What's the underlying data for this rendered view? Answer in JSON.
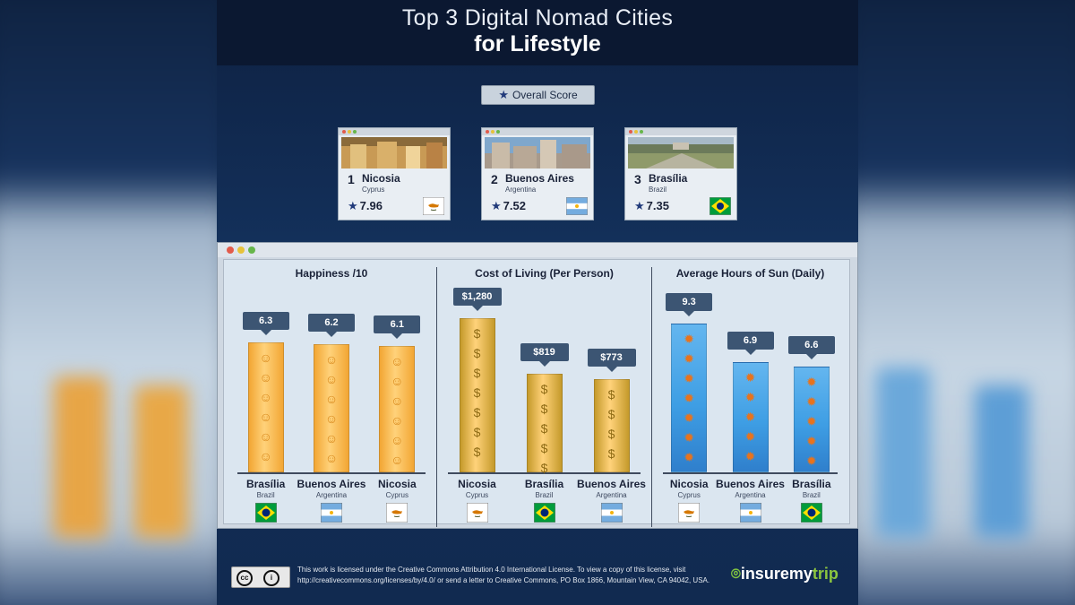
{
  "header": {
    "title_line1": "Top 3 Digital Nomad Cities",
    "title_line2": "for Lifestyle"
  },
  "overall_label": "Overall Score",
  "cards": [
    {
      "rank": "1",
      "city": "Nicosia",
      "country": "Cyprus",
      "score": "7.96",
      "flag": "cyprus"
    },
    {
      "rank": "2",
      "city": "Buenos Aires",
      "country": "Argentina",
      "score": "7.52",
      "flag": "argentina"
    },
    {
      "rank": "3",
      "city": "Brasília",
      "country": "Brazil",
      "score": "7.35",
      "flag": "brazil"
    }
  ],
  "colors": {
    "happiness": "#f2a634",
    "cost": "#c59a2b",
    "sun": "#3e9ee4",
    "callout": "#3c5573",
    "star": "#213a7a"
  },
  "icons": {
    "happiness": "smiley-icon",
    "cost": "coin-icon",
    "sun": "sun-icon"
  },
  "chart_data": [
    {
      "type": "bar",
      "title": "Happiness /10",
      "categories": [
        "Brasília",
        "Buenos Aires",
        "Nicosia"
      ],
      "countries": [
        "Brazil",
        "Argentina",
        "Cyprus"
      ],
      "flags": [
        "brazil",
        "argentina",
        "cyprus"
      ],
      "values": [
        6.3,
        6.2,
        6.1
      ],
      "labels": [
        "6.3",
        "6.2",
        "6.1"
      ]
    },
    {
      "type": "bar",
      "title": "Cost of Living (Per Person)",
      "categories": [
        "Nicosia",
        "Brasília",
        "Buenos Aires"
      ],
      "countries": [
        "Cyprus",
        "Brazil",
        "Argentina"
      ],
      "flags": [
        "cyprus",
        "brazil",
        "argentina"
      ],
      "values": [
        1280,
        819,
        773
      ],
      "labels": [
        "$1,280",
        "$819",
        "$773"
      ]
    },
    {
      "type": "bar",
      "title": "Average Hours of Sun (Daily)",
      "categories": [
        "Nicosia",
        "Buenos Aires",
        "Brasília"
      ],
      "countries": [
        "Cyprus",
        "Argentina",
        "Brazil"
      ],
      "flags": [
        "cyprus",
        "argentina",
        "brazil"
      ],
      "values": [
        9.3,
        6.9,
        6.6
      ],
      "labels": [
        "9.3",
        "6.9",
        "6.6"
      ]
    }
  ],
  "footer": {
    "cc_badge": "cc",
    "license_text": "This work is licensed under the Creative Commons Attribution 4.0 International License. To view a copy of this license, visit http://creativecommons.org/licenses/by/4.0/ or send a letter to Creative Commons, PO Box 1866, Mountain View, CA 94042, USA.",
    "logo_part1": "insuremy",
    "logo_part2": "trip"
  }
}
